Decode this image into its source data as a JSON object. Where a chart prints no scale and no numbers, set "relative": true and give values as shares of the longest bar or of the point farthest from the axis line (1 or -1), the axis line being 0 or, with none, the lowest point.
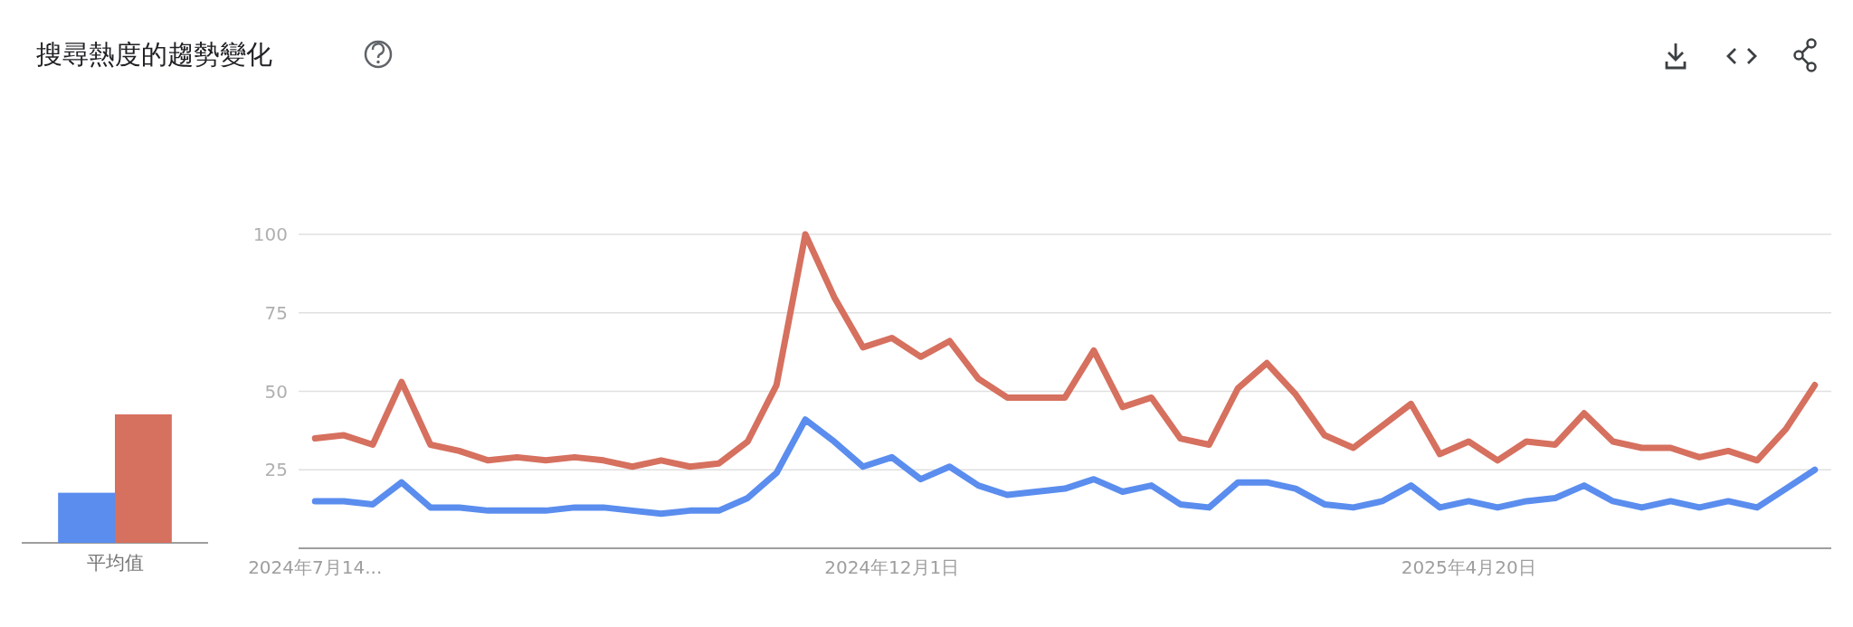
{
  "chart_data": [
    {
      "type": "bar",
      "relative": true,
      "categories": [
        "平均值"
      ],
      "series": [
        {
          "color": "#5a8dee",
          "values": [
            0.39
          ]
        },
        {
          "color": "#d6705f",
          "values": [
            1
          ]
        }
      ]
    },
    {
      "type": "line",
      "title": "搜尋熱度的趨勢變化",
      "grid": "y",
      "xlim": [
        "2024-07-10",
        "2025-07-17"
      ],
      "ylim": [
        0,
        100
      ],
      "yticks": [
        25,
        50,
        75,
        100
      ],
      "xticks": [
        {
          "value": "2024-07-14",
          "label": "2024年7月14..."
        },
        {
          "value": "2024-12-01",
          "label": "2024年12月1日"
        },
        {
          "value": "2025-04-20",
          "label": "2025年4月20日"
        }
      ],
      "x": [
        "2024-07-14",
        "2024-07-21",
        "2024-07-28",
        "2024-08-04",
        "2024-08-11",
        "2024-08-18",
        "2024-08-25",
        "2024-09-01",
        "2024-09-08",
        "2024-09-15",
        "2024-09-22",
        "2024-09-29",
        "2024-10-06",
        "2024-10-13",
        "2024-10-20",
        "2024-10-27",
        "2024-11-03",
        "2024-11-10",
        "2024-11-17",
        "2024-11-24",
        "2024-12-01",
        "2024-12-08",
        "2024-12-15",
        "2024-12-22",
        "2024-12-29",
        "2025-01-05",
        "2025-01-12",
        "2025-01-19",
        "2025-01-26",
        "2025-02-02",
        "2025-02-09",
        "2025-02-16",
        "2025-02-23",
        "2025-03-02",
        "2025-03-09",
        "2025-03-16",
        "2025-03-23",
        "2025-03-30",
        "2025-04-06",
        "2025-04-13",
        "2025-04-20",
        "2025-04-27",
        "2025-05-04",
        "2025-05-11",
        "2025-05-18",
        "2025-05-25",
        "2025-06-01",
        "2025-06-08",
        "2025-06-15",
        "2025-06-22",
        "2025-06-29",
        "2025-07-06",
        "2025-07-13"
      ],
      "series": [
        {
          "color": "#5a8dee",
          "values": [
            15,
            15,
            14,
            21,
            13,
            13,
            12,
            12,
            12,
            13,
            13,
            12,
            11,
            12,
            12,
            16,
            24,
            41,
            34,
            26,
            29,
            22,
            26,
            20,
            17,
            18,
            19,
            22,
            18,
            20,
            14,
            13,
            21,
            21,
            19,
            14,
            13,
            15,
            20,
            13,
            15,
            13,
            15,
            16,
            20,
            15,
            13,
            15,
            13,
            15,
            13,
            19,
            25
          ]
        },
        {
          "color": "#d6705f",
          "values": [
            35,
            36,
            33,
            53,
            33,
            31,
            28,
            29,
            28,
            29,
            28,
            26,
            28,
            26,
            27,
            34,
            52,
            100,
            80,
            64,
            67,
            61,
            66,
            54,
            48,
            48,
            48,
            63,
            45,
            48,
            35,
            33,
            51,
            59,
            49,
            36,
            32,
            39,
            46,
            30,
            34,
            28,
            34,
            33,
            43,
            34,
            32,
            32,
            29,
            31,
            28,
            38,
            52
          ]
        }
      ]
    }
  ]
}
